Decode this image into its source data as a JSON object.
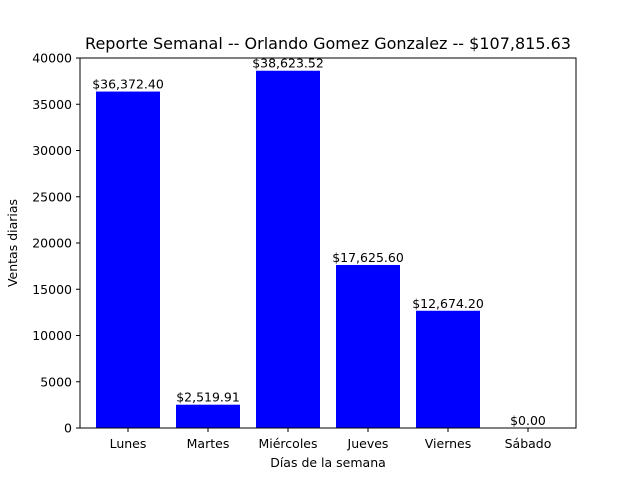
{
  "chart_data": {
    "type": "bar",
    "title": "Reporte Semanal -- Orlando Gomez Gonzalez -- $107,815.63",
    "xlabel": "Días de la semana",
    "ylabel": "Ventas diarias",
    "categories": [
      "Lunes",
      "Martes",
      "Miércoles",
      "Jueves",
      "Viernes",
      "Sábado"
    ],
    "values": [
      36372.4,
      2519.91,
      38623.52,
      17625.6,
      12674.2,
      0.0
    ],
    "data_labels": [
      "$36,372.40",
      "$2,519.91",
      "$38,623.52",
      "$17,625.60",
      "$12,674.20",
      "$0.00"
    ],
    "ylim": [
      0,
      40000
    ],
    "yticks": [
      0,
      5000,
      10000,
      15000,
      20000,
      25000,
      30000,
      35000,
      40000
    ],
    "bar_color": "#0000ff",
    "grid": false,
    "legend": "none"
  }
}
